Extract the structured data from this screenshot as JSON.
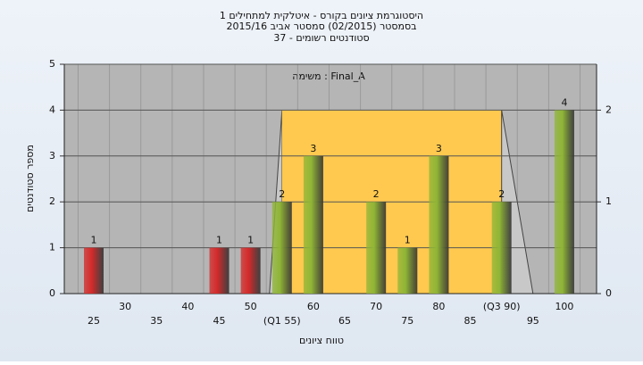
{
  "chart_data": {
    "type": "bar",
    "title": [
      "היסטוגרמת ציונים בקורס - איטלקית למתחילים 1",
      "בסמסטר  (02/2015)  סמסטר אביב 2015/16",
      "סטודנטים רשומים - 37"
    ],
    "annotation": "משימה : Final_A",
    "ylabel": "מספר סטודנטים",
    "xlabel": "טווח ציונים",
    "categories": [
      "25",
      "30",
      "35",
      "40",
      "45",
      "50",
      "(Q1 55)",
      "60",
      "65",
      "70",
      "75",
      "80",
      "85",
      "(Q3 90)",
      "95",
      "100"
    ],
    "values": [
      1,
      null,
      null,
      null,
      1,
      1,
      2,
      3,
      null,
      2,
      1,
      3,
      null,
      2,
      null,
      4
    ],
    "colors": [
      "#d42a2a",
      null,
      null,
      null,
      "#d42a2a",
      "#d42a2a",
      "#8fb536",
      "#8fb536",
      null,
      "#8fb536",
      "#8fb536",
      "#8fb536",
      null,
      "#8fb536",
      null,
      "#8fb536"
    ],
    "box": {
      "q1": 55,
      "q3": 90,
      "min": 53,
      "max": 95,
      "color": "#ffc94f"
    },
    "ylim": [
      0,
      5
    ],
    "yticks": [
      0,
      1,
      2,
      3,
      4,
      5
    ],
    "y2lim": [
      0,
      2.5
    ],
    "y2ticks": [
      0,
      1,
      2
    ],
    "grid": true
  }
}
